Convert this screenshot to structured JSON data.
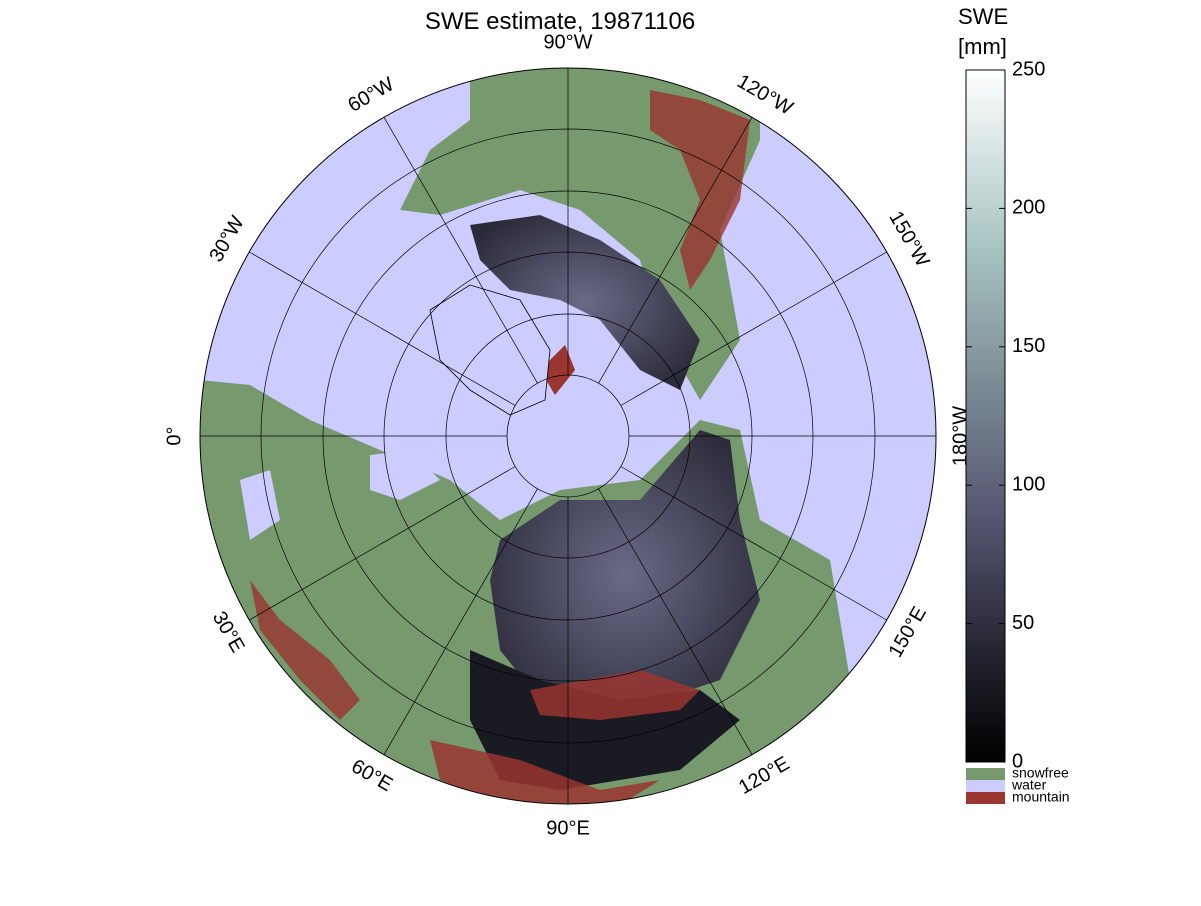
{
  "map": {
    "title": "SWE estimate, 19871106",
    "longitude_labels": [
      "90°W",
      "60°W",
      "30°W",
      "0°",
      "30°E",
      "60°E",
      "90°E",
      "120°E",
      "150°E",
      "180°W",
      "150°W",
      "120°W"
    ],
    "colorbar": {
      "label_line1": "SWE",
      "label_line2": "[mm]",
      "lim": [
        0,
        250
      ],
      "ticks": [
        0,
        50,
        100,
        150,
        200,
        250
      ]
    },
    "legend": [
      {
        "name": "snowfree",
        "color": "#769a6e"
      },
      {
        "name": "water",
        "color": "#ccccff"
      },
      {
        "name": "mountain",
        "color": "#9a3530"
      }
    ]
  }
}
